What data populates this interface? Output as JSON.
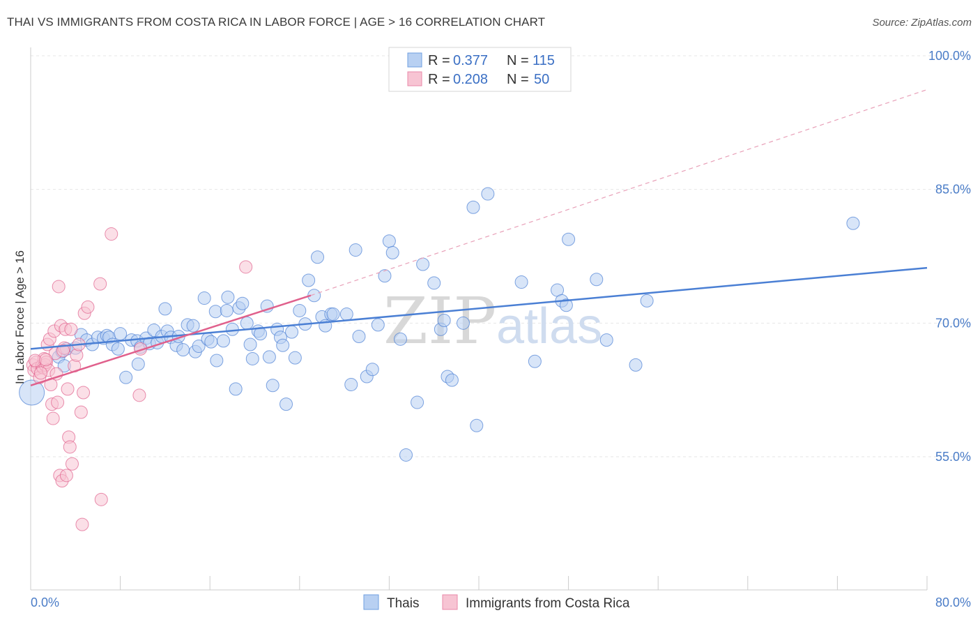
{
  "title": "THAI VS IMMIGRANTS FROM COSTA RICA IN LABOR FORCE | AGE > 16 CORRELATION CHART",
  "source": "Source: ZipAtlas.com",
  "watermark": {
    "zip": "ZIP",
    "atlas": "atlas"
  },
  "legend": {
    "r_label": "R =",
    "n_label": "N =",
    "series": [
      {
        "r": "0.377",
        "n": "115",
        "fill": "#b8d0f2",
        "stroke": "#6f9fe0"
      },
      {
        "r": "0.208",
        "n": "50",
        "fill": "#f7c4d3",
        "stroke": "#e889a8"
      }
    ]
  },
  "chart_data": {
    "type": "scatter",
    "ylabel": "In Labor Force | Age > 16",
    "xlim": [
      0,
      80
    ],
    "ylim": [
      40,
      102
    ],
    "x_tick_labels": {
      "0": "0.0%",
      "80": "80.0%"
    },
    "y_tick_labels": {
      "55": "55.0%",
      "70": "70.0%",
      "85": "85.0%",
      "100": "100.0%"
    },
    "grid": true,
    "legend_position": "top-center",
    "series": [
      {
        "name": "Thais",
        "color": "#4a7fd4",
        "fill": "#b8d0f2",
        "trend": {
          "x": [
            0,
            80
          ],
          "y": [
            67.1,
            76.2
          ],
          "style": "solid"
        },
        "points": [
          [
            0.1,
            62.2
          ],
          [
            2.5,
            66.2
          ],
          [
            2.8,
            66.8
          ],
          [
            3.2,
            67.1
          ],
          [
            3.0,
            65.2
          ],
          [
            4.5,
            68.7
          ],
          [
            4.0,
            67.2
          ],
          [
            5.0,
            68.1
          ],
          [
            5.5,
            67.6
          ],
          [
            6.0,
            68.4
          ],
          [
            6.5,
            68.3
          ],
          [
            6.8,
            68.6
          ],
          [
            7.0,
            68.4
          ],
          [
            7.3,
            67.6
          ],
          [
            7.8,
            67.1
          ],
          [
            8.0,
            68.8
          ],
          [
            8.5,
            63.9
          ],
          [
            9.0,
            68.1
          ],
          [
            9.5,
            68.0
          ],
          [
            9.6,
            65.4
          ],
          [
            9.8,
            67.3
          ],
          [
            10.3,
            68.3
          ],
          [
            10.6,
            67.7
          ],
          [
            11.0,
            69.2
          ],
          [
            11.3,
            67.8
          ],
          [
            11.7,
            68.5
          ],
          [
            12.0,
            71.6
          ],
          [
            12.2,
            69.1
          ],
          [
            12.5,
            68.4
          ],
          [
            13.0,
            67.5
          ],
          [
            13.2,
            68.5
          ],
          [
            13.6,
            67.0
          ],
          [
            14.0,
            69.8
          ],
          [
            14.5,
            69.7
          ],
          [
            14.7,
            66.8
          ],
          [
            15.0,
            67.4
          ],
          [
            15.5,
            72.8
          ],
          [
            15.8,
            68.2
          ],
          [
            16.1,
            67.9
          ],
          [
            16.5,
            71.3
          ],
          [
            16.6,
            65.8
          ],
          [
            17.2,
            68.0
          ],
          [
            17.5,
            71.4
          ],
          [
            17.6,
            72.9
          ],
          [
            18.0,
            69.3
          ],
          [
            18.3,
            62.6
          ],
          [
            18.6,
            71.7
          ],
          [
            18.9,
            72.2
          ],
          [
            19.3,
            70.0
          ],
          [
            19.6,
            67.6
          ],
          [
            19.8,
            66.0
          ],
          [
            20.3,
            69.1
          ],
          [
            20.5,
            68.8
          ],
          [
            21.1,
            71.9
          ],
          [
            21.3,
            66.2
          ],
          [
            21.6,
            63.0
          ],
          [
            22.0,
            69.3
          ],
          [
            22.3,
            68.4
          ],
          [
            22.5,
            67.5
          ],
          [
            22.8,
            60.9
          ],
          [
            23.3,
            69.0
          ],
          [
            23.6,
            66.1
          ],
          [
            24.0,
            71.4
          ],
          [
            24.5,
            69.9
          ],
          [
            24.8,
            74.8
          ],
          [
            25.3,
            73.1
          ],
          [
            25.6,
            77.4
          ],
          [
            26.0,
            70.7
          ],
          [
            26.3,
            69.7
          ],
          [
            26.8,
            71.0
          ],
          [
            27.0,
            71.0
          ],
          [
            28.2,
            71.0
          ],
          [
            28.6,
            63.1
          ],
          [
            29.0,
            78.2
          ],
          [
            29.3,
            68.5
          ],
          [
            30.0,
            64.0
          ],
          [
            30.5,
            64.8
          ],
          [
            31.0,
            69.8
          ],
          [
            31.6,
            75.3
          ],
          [
            32.0,
            79.2
          ],
          [
            32.3,
            77.9
          ],
          [
            33.0,
            68.2
          ],
          [
            33.5,
            55.2
          ],
          [
            34.5,
            61.1
          ],
          [
            35.0,
            76.6
          ],
          [
            36.0,
            74.5
          ],
          [
            36.6,
            69.3
          ],
          [
            36.9,
            70.3
          ],
          [
            37.2,
            64.0
          ],
          [
            37.6,
            63.6
          ],
          [
            38.6,
            70.0
          ],
          [
            39.5,
            83.0
          ],
          [
            39.8,
            58.5
          ],
          [
            40.8,
            84.5
          ],
          [
            43.8,
            74.6
          ],
          [
            45.0,
            65.7
          ],
          [
            47.0,
            73.7
          ],
          [
            47.4,
            72.5
          ],
          [
            47.8,
            72.0
          ],
          [
            48.0,
            79.4
          ],
          [
            50.5,
            74.9
          ],
          [
            51.4,
            68.1
          ],
          [
            54.0,
            65.3
          ],
          [
            55.0,
            72.5
          ],
          [
            73.4,
            81.2
          ]
        ]
      },
      {
        "name": "Immigrants from Costa Rica",
        "color": "#e0608c",
        "fill": "#f7c4d3",
        "trend": {
          "x": [
            0,
            25
          ],
          "y": [
            63.0,
            73.1
          ],
          "style": "solid"
        },
        "trend_ext": {
          "x": [
            25,
            80
          ],
          "y": [
            73.1,
            96.2
          ],
          "style": "dashed"
        },
        "points": [
          [
            0.2,
            65.3
          ],
          [
            0.3,
            64.7
          ],
          [
            0.5,
            65.6
          ],
          [
            0.6,
            64.9
          ],
          [
            0.8,
            63.9
          ],
          [
            1.0,
            65.2
          ],
          [
            1.1,
            65.0
          ],
          [
            1.2,
            66.0
          ],
          [
            1.3,
            65.3
          ],
          [
            1.4,
            65.6
          ],
          [
            1.5,
            67.6
          ],
          [
            1.6,
            64.7
          ],
          [
            1.7,
            68.2
          ],
          [
            1.8,
            63.1
          ],
          [
            1.9,
            60.9
          ],
          [
            2.0,
            59.3
          ],
          [
            2.1,
            69.1
          ],
          [
            2.2,
            66.6
          ],
          [
            2.3,
            64.3
          ],
          [
            2.4,
            61.1
          ],
          [
            2.5,
            74.1
          ],
          [
            2.6,
            52.9
          ],
          [
            2.7,
            69.7
          ],
          [
            2.8,
            52.3
          ],
          [
            3.0,
            67.2
          ],
          [
            3.1,
            69.3
          ],
          [
            3.2,
            52.9
          ],
          [
            3.3,
            62.6
          ],
          [
            3.4,
            57.2
          ],
          [
            3.5,
            56.1
          ],
          [
            3.6,
            69.3
          ],
          [
            3.7,
            54.2
          ],
          [
            3.9,
            65.2
          ],
          [
            4.1,
            66.4
          ],
          [
            4.3,
            67.6
          ],
          [
            4.5,
            60.0
          ],
          [
            4.6,
            47.4
          ],
          [
            4.7,
            62.2
          ],
          [
            4.8,
            71.1
          ],
          [
            5.1,
            71.8
          ],
          [
            6.2,
            74.4
          ],
          [
            6.3,
            50.2
          ],
          [
            7.2,
            80.0
          ],
          [
            9.7,
            61.9
          ],
          [
            9.8,
            67.1
          ],
          [
            19.2,
            76.3
          ],
          [
            0.4,
            65.8
          ],
          [
            0.9,
            64.4
          ],
          [
            1.35,
            65.9
          ],
          [
            2.9,
            66.9
          ]
        ]
      }
    ]
  }
}
